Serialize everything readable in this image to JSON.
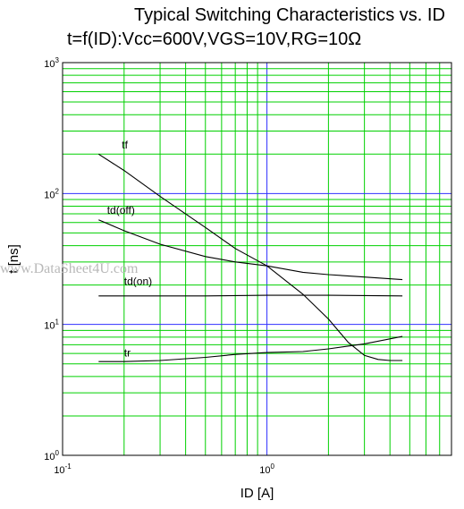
{
  "chart_data": {
    "type": "line",
    "title": "Typical Switching Characteristics vs. ID",
    "subtitle": "t=f(ID):Vcc=600V,VGS=10V,RG=10Ω",
    "xlabel": "ID [A]",
    "ylabel": "t [ns]",
    "x_scale": "log",
    "y_scale": "log",
    "xlim": [
      0.1,
      8
    ],
    "ylim": [
      1,
      1000
    ],
    "grid": true,
    "colors": {
      "minor_grid": "#00d000",
      "major_grid": "#3030ff",
      "series": "#000000"
    },
    "x_ticks": [
      {
        "value": 0.1,
        "base": "10",
        "exp": "-1"
      },
      {
        "value": 1,
        "base": "10",
        "exp": "0"
      }
    ],
    "y_ticks": [
      {
        "value": 1,
        "base": "10",
        "exp": "0"
      },
      {
        "value": 10,
        "base": "10",
        "exp": "1"
      },
      {
        "value": 100,
        "base": "10",
        "exp": "2"
      },
      {
        "value": 1000,
        "base": "10",
        "exp": "3"
      }
    ],
    "series": [
      {
        "name": "tf",
        "label_at": [
          0.195,
          220
        ],
        "x": [
          0.15,
          0.2,
          0.3,
          0.5,
          0.7,
          1.0,
          1.5,
          2.0,
          2.5,
          3.0,
          3.5,
          4.0,
          4.6
        ],
        "y": [
          200,
          150,
          95,
          55,
          38,
          28,
          17,
          11,
          7.3,
          5.8,
          5.4,
          5.3,
          5.3
        ]
      },
      {
        "name": "td(off)",
        "label_at": [
          0.165,
          70
        ],
        "x": [
          0.15,
          0.2,
          0.3,
          0.5,
          0.7,
          1.0,
          1.5,
          2.0,
          3.0,
          4.6
        ],
        "y": [
          63,
          52,
          41,
          33,
          30,
          28,
          25,
          24,
          23,
          22
        ]
      },
      {
        "name": "td(on)",
        "label_at": [
          0.2,
          20
        ],
        "x": [
          0.15,
          0.3,
          0.5,
          1.0,
          2.0,
          4.6
        ],
        "y": [
          16.5,
          16.5,
          16.5,
          16.7,
          16.7,
          16.5
        ]
      },
      {
        "name": "tr",
        "label_at": [
          0.2,
          5.7
        ],
        "x": [
          0.15,
          0.2,
          0.3,
          0.5,
          0.7,
          1.0,
          1.5,
          2.0,
          3.0,
          4.6
        ],
        "y": [
          5.2,
          5.2,
          5.3,
          5.6,
          5.9,
          6.1,
          6.2,
          6.5,
          7.1,
          8.1
        ]
      }
    ]
  },
  "watermark": "www.DataSheet4U.com"
}
